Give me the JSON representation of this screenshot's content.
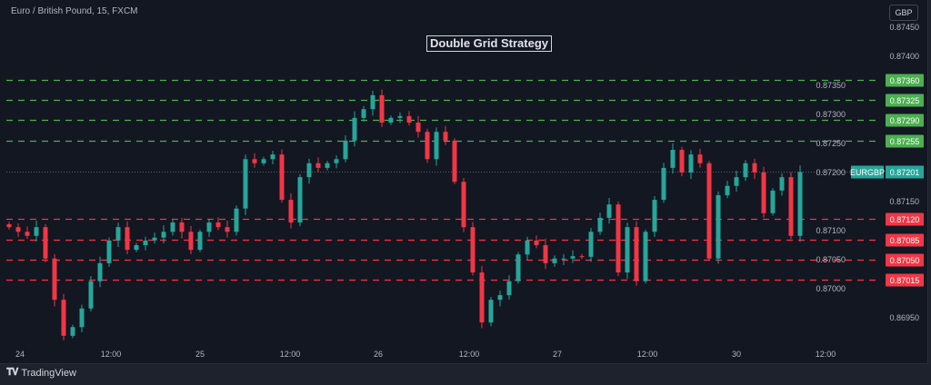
{
  "header": {
    "symbol": "Euro / British Pound, 15, FXCM",
    "currency": "GBP"
  },
  "footer": {
    "brand": "TradingView"
  },
  "colors": {
    "up": "#26a69a",
    "down": "#f23645",
    "buy_grid": "#4caf50",
    "sell_grid": "#f23645",
    "background": "#131722"
  },
  "chart_data": {
    "type": "candlestick",
    "title": "Double Grid Strategy",
    "symbol_label": "EURGBP",
    "current_price": 0.87201,
    "ylim": [
      0.869,
      0.8748
    ],
    "y_ticks": [
      "0.87450",
      "0.87400",
      "0.87350",
      "0.87300",
      "0.87250",
      "0.87200",
      "0.87150",
      "0.87100",
      "0.87050",
      "0.87000",
      "0.86950"
    ],
    "x_ticks": [
      "24",
      "12:00",
      "25",
      "12:00",
      "26",
      "12:00",
      "27",
      "12:00",
      "30",
      "12:00"
    ],
    "upper_grid_levels": [
      "0.87360",
      "0.87325",
      "0.87290",
      "0.87255"
    ],
    "lower_grid_levels": [
      "0.87120",
      "0.87085",
      "0.87050",
      "0.87015"
    ],
    "closes": [
      0.87106,
      0.87098,
      0.87091,
      0.87106,
      0.87052,
      0.86981,
      0.86919,
      0.86934,
      0.86966,
      0.87013,
      0.87044,
      0.87083,
      0.87106,
      0.87067,
      0.87075,
      0.87083,
      0.87088,
      0.87098,
      0.87114,
      0.87098,
      0.87067,
      0.87098,
      0.87114,
      0.87106,
      0.87098,
      0.87138,
      0.87223,
      0.87216,
      0.87223,
      0.87231,
      0.87153,
      0.87114,
      0.87192,
      0.87216,
      0.87208,
      0.87216,
      0.87223,
      0.87255,
      0.87294,
      0.87309,
      0.87333,
      0.87286,
      0.87294,
      0.87297,
      0.87286,
      0.8727,
      0.87223,
      0.8727,
      0.87255,
      0.87184,
      0.87106,
      0.87028,
      0.86942,
      0.86981,
      0.86989,
      0.87013,
      0.87059,
      0.87083,
      0.87075,
      0.87044,
      0.87052,
      0.87052,
      0.87056,
      0.87055,
      0.87098,
      0.87122,
      0.87145,
      0.87028,
      0.87106,
      0.87013,
      0.87098,
      0.87153,
      0.87208,
      0.87239,
      0.872,
      0.87231,
      0.87216,
      0.87052,
      0.87161,
      0.87177,
      0.87192,
      0.87216,
      0.872,
      0.8713,
      0.87169,
      0.87192,
      0.87091,
      0.87201
    ]
  }
}
